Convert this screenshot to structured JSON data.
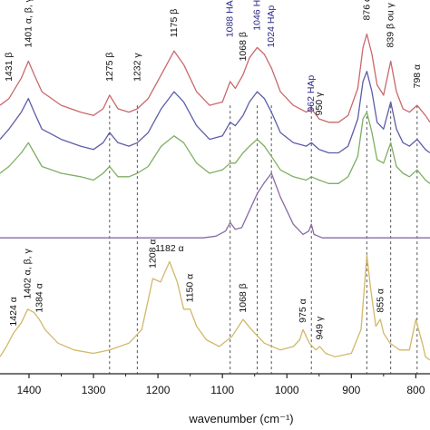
{
  "chart_data": {
    "type": "line",
    "xlabel": "wavenumber (cm⁻¹)",
    "x_range": [
      1445,
      778
    ],
    "y_range": [
      0,
      11
    ],
    "x_ticks": [
      1400,
      1300,
      1200,
      1100,
      1000,
      900,
      800
    ],
    "colors": {
      "red": "#c9686c",
      "blue": "#5c5ea8",
      "green": "#7fae62",
      "purple": "#8a6aa4",
      "gold": "#d2b86a",
      "axis": "#222222",
      "ref_line": "#555555",
      "label_blue": "#2b2b8c"
    },
    "series": [
      {
        "color": "#c9686c",
        "x": [
          1445,
          1431,
          1412,
          1401,
          1392,
          1380,
          1350,
          1320,
          1300,
          1285,
          1275,
          1262,
          1245,
          1232,
          1215,
          1195,
          1175,
          1160,
          1140,
          1120,
          1100,
          1088,
          1080,
          1068,
          1058,
          1046,
          1035,
          1024,
          1010,
          990,
          970,
          962,
          950,
          935,
          920,
          905,
          890,
          882,
          876,
          868,
          860,
          850,
          839,
          830,
          820,
          810,
          798,
          785,
          778
        ],
        "y": [
          7.9,
          8.1,
          8.7,
          9.2,
          8.8,
          8.3,
          7.9,
          7.7,
          7.6,
          7.8,
          8.2,
          7.8,
          7.7,
          7.8,
          8.1,
          8.8,
          9.5,
          9.1,
          8.3,
          7.9,
          8.0,
          8.6,
          8.4,
          8.8,
          9.3,
          9.6,
          9.4,
          9.0,
          8.3,
          7.9,
          7.7,
          7.8,
          7.5,
          7.4,
          7.4,
          7.6,
          8.4,
          9.6,
          10.0,
          9.4,
          8.5,
          8.2,
          9.2,
          8.3,
          7.8,
          7.7,
          7.9,
          7.6,
          7.4
        ]
      },
      {
        "color": "#5c5ea8",
        "x": [
          1445,
          1431,
          1412,
          1401,
          1392,
          1380,
          1350,
          1320,
          1300,
          1285,
          1275,
          1262,
          1245,
          1232,
          1215,
          1195,
          1175,
          1160,
          1140,
          1120,
          1100,
          1088,
          1080,
          1068,
          1058,
          1046,
          1035,
          1024,
          1010,
          990,
          970,
          962,
          950,
          935,
          920,
          905,
          890,
          882,
          876,
          868,
          860,
          850,
          839,
          830,
          820,
          810,
          798,
          785,
          778
        ],
        "y": [
          6.9,
          7.2,
          7.7,
          8.1,
          7.7,
          7.2,
          6.9,
          6.7,
          6.6,
          6.8,
          7.1,
          6.8,
          6.7,
          6.8,
          7.1,
          7.8,
          8.3,
          8.0,
          7.3,
          6.9,
          7.0,
          7.4,
          7.3,
          7.6,
          8.0,
          8.3,
          8.1,
          7.7,
          7.1,
          6.8,
          6.7,
          6.8,
          6.6,
          6.5,
          6.5,
          6.7,
          7.5,
          8.6,
          8.9,
          8.3,
          7.4,
          7.2,
          8.0,
          7.2,
          6.8,
          6.7,
          6.9,
          6.6,
          6.5
        ]
      },
      {
        "color": "#7fae62",
        "x": [
          1445,
          1431,
          1412,
          1401,
          1392,
          1380,
          1350,
          1320,
          1300,
          1285,
          1275,
          1262,
          1245,
          1232,
          1215,
          1195,
          1175,
          1160,
          1140,
          1120,
          1100,
          1088,
          1080,
          1068,
          1058,
          1046,
          1035,
          1024,
          1010,
          990,
          970,
          962,
          950,
          935,
          920,
          905,
          890,
          882,
          876,
          868,
          860,
          850,
          839,
          830,
          820,
          810,
          798,
          785,
          778
        ],
        "y": [
          5.9,
          6.1,
          6.5,
          6.8,
          6.5,
          6.1,
          5.9,
          5.8,
          5.7,
          5.9,
          6.1,
          5.8,
          5.8,
          5.9,
          6.1,
          6.7,
          7.0,
          6.8,
          6.2,
          5.9,
          6.0,
          6.2,
          6.2,
          6.5,
          6.7,
          6.9,
          6.7,
          6.4,
          6.0,
          5.8,
          5.7,
          5.8,
          5.7,
          5.6,
          5.6,
          5.8,
          6.4,
          7.5,
          7.7,
          7.1,
          6.3,
          6.2,
          6.8,
          6.1,
          5.9,
          5.8,
          6.0,
          5.7,
          5.6
        ]
      },
      {
        "color": "#8a6aa4",
        "x": [
          1445,
          1300,
          1200,
          1130,
          1110,
          1095,
          1088,
          1080,
          1070,
          1058,
          1046,
          1036,
          1024,
          1010,
          990,
          975,
          966,
          962,
          958,
          945,
          920,
          880,
          800,
          778
        ],
        "y": [
          4.0,
          4.0,
          4.0,
          4.0,
          4.05,
          4.2,
          4.45,
          4.25,
          4.3,
          4.8,
          5.3,
          5.6,
          5.9,
          5.2,
          4.4,
          4.1,
          4.2,
          4.4,
          4.1,
          4.0,
          4.0,
          4.0,
          4.0,
          4.0
        ]
      },
      {
        "color": "#d2b86a",
        "x": [
          1445,
          1435,
          1424,
          1412,
          1402,
          1392,
          1384,
          1375,
          1355,
          1330,
          1300,
          1275,
          1245,
          1225,
          1208,
          1196,
          1182,
          1170,
          1160,
          1150,
          1140,
          1125,
          1105,
          1085,
          1068,
          1055,
          1035,
          1010,
          990,
          980,
          975,
          965,
          955,
          949,
          940,
          925,
          900,
          885,
          876,
          870,
          862,
          855,
          850,
          840,
          825,
          810,
          800,
          790,
          785,
          778
        ],
        "y": [
          0.5,
          0.8,
          1.2,
          1.5,
          1.9,
          1.8,
          1.6,
          1.3,
          0.9,
          0.7,
          0.6,
          0.7,
          0.9,
          1.3,
          2.8,
          2.7,
          3.3,
          2.7,
          1.9,
          1.9,
          1.4,
          1.0,
          0.8,
          1.1,
          1.6,
          1.3,
          0.9,
          0.7,
          0.8,
          1.0,
          1.3,
          0.9,
          0.7,
          0.8,
          0.6,
          0.5,
          0.6,
          1.3,
          3.5,
          2.5,
          1.4,
          1.6,
          1.2,
          0.9,
          0.7,
          0.7,
          1.6,
          0.9,
          0.5,
          0.4
        ]
      }
    ],
    "reference_lines": [
      1275,
      1232,
      1088,
      1046,
      1024,
      962,
      876,
      839,
      798
    ],
    "annotations": [
      {
        "text": "1431 β",
        "x": 1431,
        "y": 8.6,
        "rotate": true,
        "color": "black"
      },
      {
        "text": "1401 α, β, γ",
        "x": 1401,
        "y": 9.6,
        "rotate": true,
        "color": "black"
      },
      {
        "text": "1275 β",
        "x": 1275,
        "y": 8.6,
        "rotate": true,
        "color": "black"
      },
      {
        "text": "1232 γ",
        "x": 1232,
        "y": 8.6,
        "rotate": true,
        "color": "black"
      },
      {
        "text": "1175 β",
        "x": 1175,
        "y": 9.9,
        "rotate": true,
        "color": "black"
      },
      {
        "text": "1088 HAp",
        "x": 1088,
        "y": 9.9,
        "rotate": true,
        "color": "blue"
      },
      {
        "text": "1068 β",
        "x": 1068,
        "y": 9.2,
        "rotate": true,
        "color": "black"
      },
      {
        "text": "1046 HAp",
        "x": 1046,
        "y": 10.1,
        "rotate": true,
        "color": "blue"
      },
      {
        "text": "1024 HAp",
        "x": 1024,
        "y": 9.6,
        "rotate": true,
        "color": "blue"
      },
      {
        "text": "962 HAp",
        "x": 962,
        "y": 7.7,
        "rotate": true,
        "color": "blue"
      },
      {
        "text": "950 γ",
        "x": 950,
        "y": 7.6,
        "rotate": true,
        "color": "black"
      },
      {
        "text": "876 α",
        "x": 876,
        "y": 10.4,
        "rotate": true,
        "color": "black"
      },
      {
        "text": "839 β ou γ",
        "x": 839,
        "y": 9.6,
        "rotate": true,
        "color": "black"
      },
      {
        "text": "798 α",
        "x": 798,
        "y": 8.4,
        "rotate": true,
        "color": "black"
      },
      {
        "text": "1424 α",
        "x": 1424,
        "y": 1.4,
        "rotate": true,
        "color": "black"
      },
      {
        "text": "1402 α, β, γ",
        "x": 1402,
        "y": 2.2,
        "rotate": true,
        "color": "black"
      },
      {
        "text": "1384 α",
        "x": 1384,
        "y": 1.8,
        "rotate": true,
        "color": "black"
      },
      {
        "text": "1208 α",
        "x": 1208,
        "y": 3.1,
        "rotate": true,
        "color": "black"
      },
      {
        "text": "1182 α",
        "x": 1182,
        "y": 3.6,
        "rotate": false,
        "color": "black"
      },
      {
        "text": "1150 α",
        "x": 1150,
        "y": 2.1,
        "rotate": true,
        "color": "black"
      },
      {
        "text": "1068 β",
        "x": 1068,
        "y": 1.8,
        "rotate": true,
        "color": "black"
      },
      {
        "text": "975 α",
        "x": 975,
        "y": 1.5,
        "rotate": true,
        "color": "black"
      },
      {
        "text": "949 γ",
        "x": 949,
        "y": 1.0,
        "rotate": true,
        "color": "black"
      },
      {
        "text": "855 α",
        "x": 855,
        "y": 1.8,
        "rotate": true,
        "color": "black"
      }
    ]
  }
}
